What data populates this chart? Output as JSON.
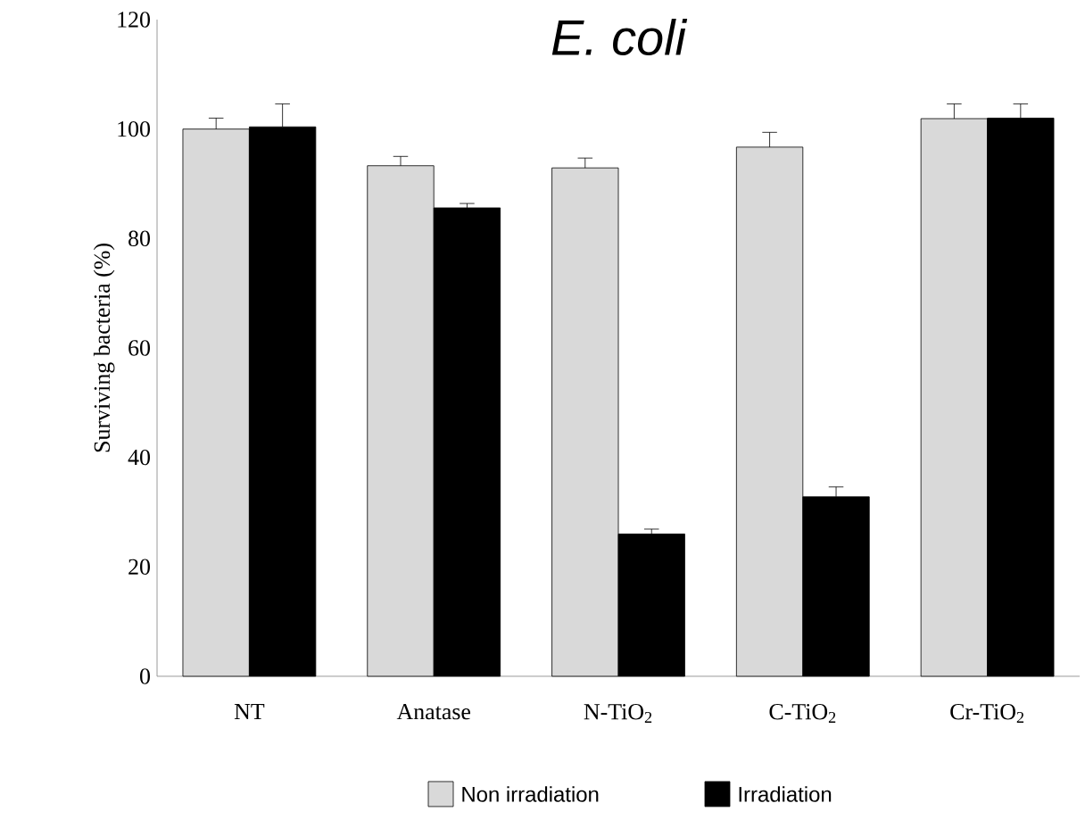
{
  "chart_data": {
    "type": "bar",
    "title": "E. coli",
    "ylabel": "Surviving bacteria (%)",
    "categories": [
      "NT",
      "Anatase",
      "N-TiO$_{2}$",
      "C-TiO$_{2}$",
      "Cr-TiO$_{2}$"
    ],
    "series": [
      {
        "name": "Non irradiation",
        "color": "#d9d9d9",
        "values": [
          100,
          93.3,
          92.9,
          96.7,
          101.9
        ],
        "errors": [
          [
            100,
            102
          ],
          [
            93.3,
            95
          ],
          [
            92.9,
            94.7
          ],
          [
            96.7,
            99.4
          ],
          [
            101.9,
            104.6
          ]
        ]
      },
      {
        "name": "Irradiation",
        "color": "#000000",
        "values": [
          100.4,
          85.6,
          26,
          32.8,
          102
        ],
        "errors": [
          [
            100.4,
            104.6
          ],
          [
            85.6,
            86.4
          ],
          [
            26,
            26.9
          ],
          [
            32.8,
            34.6
          ],
          [
            102,
            104.6
          ]
        ]
      }
    ],
    "ylim": [
      0,
      120
    ],
    "yticks": [
      0,
      20,
      40,
      60,
      80,
      100,
      120
    ],
    "grid": false,
    "legend": "bottom"
  }
}
